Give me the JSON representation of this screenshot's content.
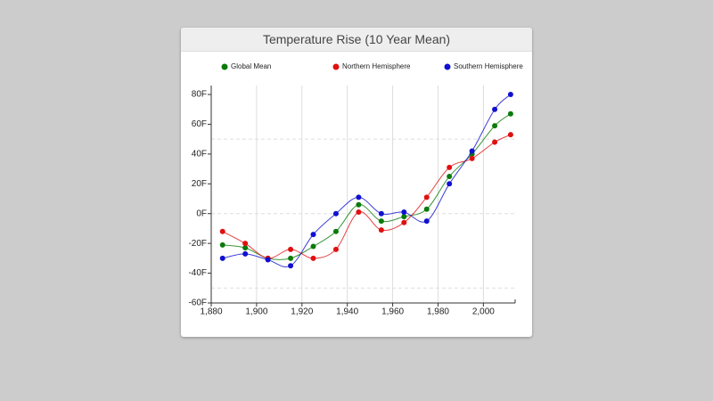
{
  "chart_data": {
    "type": "line",
    "title": "Temperature Rise (10 Year Mean)",
    "x": [
      1885,
      1895,
      1905,
      1915,
      1925,
      1935,
      1945,
      1955,
      1965,
      1975,
      1985,
      1995,
      2005,
      2012
    ],
    "series": [
      {
        "name": "Global Mean",
        "color": "#0a7a0a",
        "values": [
          -21,
          -23,
          -30,
          -30,
          -22,
          -12,
          6,
          -5,
          -2,
          3,
          25,
          40,
          59,
          67
        ]
      },
      {
        "name": "Northern Hemisphere",
        "color": "#e01010",
        "values": [
          -12,
          -20,
          -30,
          -24,
          -30,
          -24,
          1,
          -11,
          -6,
          11,
          31,
          37,
          48,
          53
        ]
      },
      {
        "name": "Southern Hemisphere",
        "color": "#1010d0",
        "values": [
          -30,
          -27,
          -31,
          -35,
          -14,
          0,
          11,
          0,
          1,
          -5,
          20,
          42,
          70,
          80
        ]
      }
    ],
    "xlim": [
      1880,
      2014
    ],
    "xticks": [
      {
        "value": 1880,
        "label": "1,880"
      },
      {
        "value": 1900,
        "label": "1,900"
      },
      {
        "value": 1920,
        "label": "1,920"
      },
      {
        "value": 1940,
        "label": "1,940"
      },
      {
        "value": 1960,
        "label": "1,960"
      },
      {
        "value": 1980,
        "label": "1,980"
      },
      {
        "value": 2000,
        "label": "2,000"
      }
    ],
    "ylim": [
      -60,
      86
    ],
    "yticks": [
      {
        "value": -60,
        "label": "-60F"
      },
      {
        "value": -40,
        "label": "-40F"
      },
      {
        "value": -20,
        "label": "-20F"
      },
      {
        "value": 0,
        "label": "0F"
      },
      {
        "value": 20,
        "label": "20F"
      },
      {
        "value": 40,
        "label": "40F"
      },
      {
        "value": 60,
        "label": "60F"
      },
      {
        "value": 80,
        "label": "80F"
      }
    ],
    "y_gridlines": [
      -50,
      0,
      50
    ],
    "smooth": true
  }
}
